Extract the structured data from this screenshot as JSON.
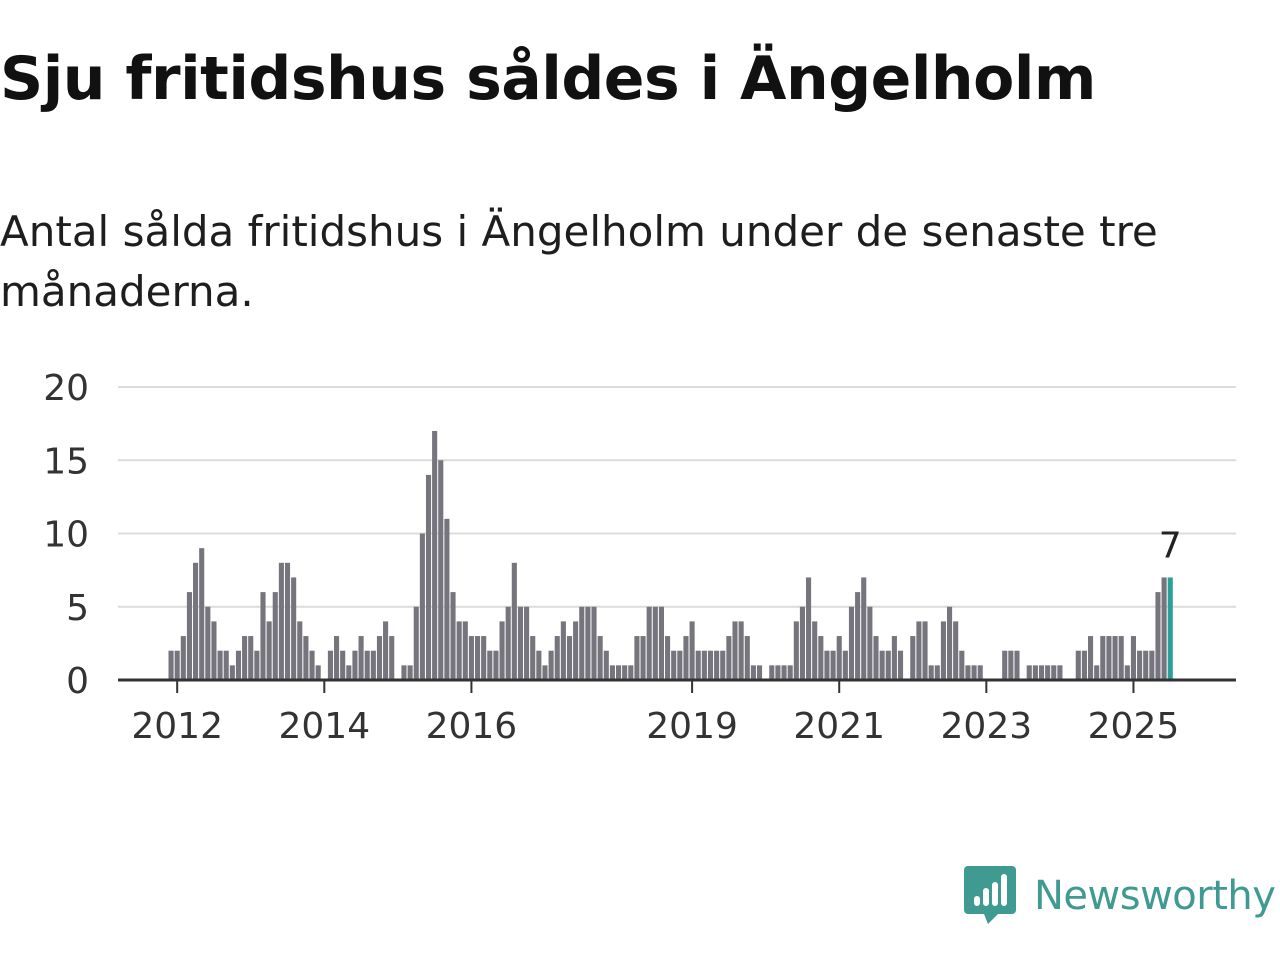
{
  "title": "Sju fritidshus såldes i Ängelholm",
  "subtitle": "Antal sålda fritidshus i Ängelholm under de senaste tre månaderna.",
  "brand": {
    "name": "Newsworthy",
    "icon": "newsworthy-chart-bubble-icon",
    "color": "#3f9a92"
  },
  "colors": {
    "bar": "#76747c",
    "highlight": "#2aa198",
    "grid": "#dcdcdc",
    "axis": "#333333",
    "text": "#333333"
  },
  "chart_data": {
    "type": "bar",
    "start": "2011-12",
    "values": [
      2,
      2,
      3,
      6,
      8,
      9,
      5,
      4,
      2,
      2,
      1,
      2,
      3,
      3,
      2,
      6,
      4,
      6,
      8,
      8,
      7,
      4,
      3,
      2,
      1,
      0,
      2,
      3,
      2,
      1,
      2,
      3,
      2,
      2,
      3,
      4,
      3,
      0,
      1,
      1,
      5,
      10,
      14,
      17,
      15,
      11,
      6,
      4,
      4,
      3,
      3,
      3,
      2,
      2,
      4,
      5,
      8,
      5,
      5,
      3,
      2,
      1,
      2,
      3,
      4,
      3,
      4,
      5,
      5,
      5,
      3,
      2,
      1,
      1,
      1,
      1,
      3,
      3,
      5,
      5,
      5,
      3,
      2,
      2,
      3,
      4,
      2,
      2,
      2,
      2,
      2,
      3,
      4,
      4,
      3,
      1,
      1,
      0,
      1,
      1,
      1,
      1,
      4,
      5,
      7,
      4,
      3,
      2,
      2,
      3,
      2,
      5,
      6,
      7,
      5,
      3,
      2,
      2,
      3,
      2,
      0,
      3,
      4,
      4,
      1,
      1,
      4,
      5,
      4,
      2,
      1,
      1,
      1,
      0,
      0,
      0,
      2,
      2,
      2,
      0,
      1,
      1,
      1,
      1,
      1,
      1,
      0,
      0,
      2,
      2,
      3,
      1,
      3,
      3,
      3,
      3,
      1,
      3,
      2,
      2,
      2,
      6,
      7,
      7
    ],
    "highlight_last": true,
    "last_value_label": "7",
    "x_ticks": [
      {
        "label": "2012",
        "month": "2012-01"
      },
      {
        "label": "2014",
        "month": "2014-01"
      },
      {
        "label": "2016",
        "month": "2016-01"
      },
      {
        "label": "2019",
        "month": "2019-01"
      },
      {
        "label": "2021",
        "month": "2021-01"
      },
      {
        "label": "2023",
        "month": "2023-01"
      },
      {
        "label": "2025",
        "month": "2025-01"
      }
    ],
    "y_ticks": [
      0,
      5,
      10,
      15,
      20
    ],
    "ylim": [
      0,
      20
    ],
    "grid": true
  }
}
